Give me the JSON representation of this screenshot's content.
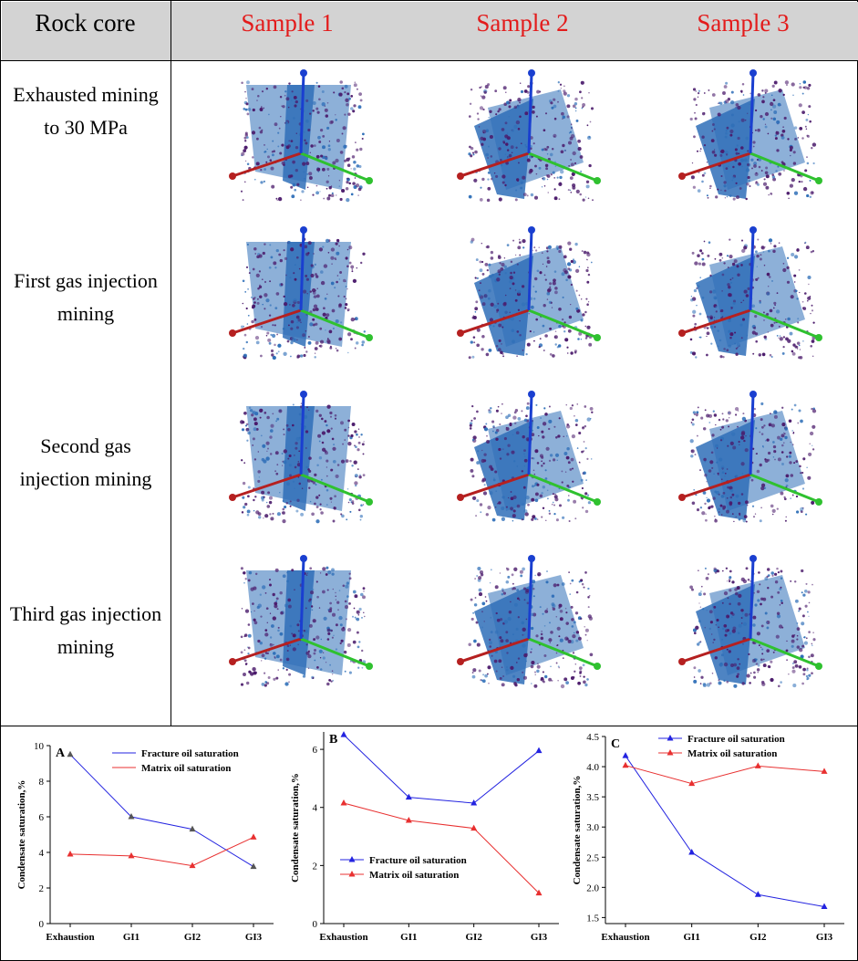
{
  "table": {
    "header": {
      "rock_core_label": "Rock core",
      "samples": [
        "Sample 1",
        "Sample 2",
        "Sample 3"
      ],
      "sample_color": "#e31b1b"
    },
    "rows": [
      {
        "label": "Exhausted mining to 30 MPa"
      },
      {
        "label": "First gas injection mining"
      },
      {
        "label": "Second gas injection mining"
      },
      {
        "label": "Third gas injection mining"
      }
    ],
    "colors": {
      "fracture": "#2f6fb8",
      "pores": "#4a1a6b",
      "axis_x": "#b52020",
      "axis_y": "#2fc12f",
      "axis_z": "#1a3fd0"
    }
  },
  "chart_data": [
    {
      "panel": "A",
      "type": "line",
      "categories": [
        "Exhaustion",
        "GI1",
        "GI2",
        "GI3"
      ],
      "ylabel": "Condensate saturation,%",
      "ylim": [
        0,
        10
      ],
      "yticks": [
        "0",
        "2",
        "4",
        "6",
        "8",
        "10"
      ],
      "legend_position": "top-right",
      "series": [
        {
          "name": "Fracture oil saturation",
          "color": "#2323e0",
          "values": [
            9.5,
            6.0,
            5.3,
            3.2
          ]
        },
        {
          "name": "Matrix oil saturation",
          "color": "#e83030",
          "values": [
            3.9,
            3.8,
            3.25,
            4.85
          ]
        }
      ]
    },
    {
      "panel": "B",
      "type": "line",
      "categories": [
        "Exhaustion",
        "GI1",
        "GI2",
        "GI3"
      ],
      "ylabel": "Condensate saturation,%",
      "ylim": [
        0,
        6.6
      ],
      "yticks": [
        "0",
        "2",
        "4",
        "6"
      ],
      "legend_position": "bottom-left",
      "series": [
        {
          "name": "Fracture oil saturation",
          "color": "#2323e0",
          "values": [
            6.5,
            4.35,
            4.15,
            5.95
          ]
        },
        {
          "name": "Matrix oil saturation",
          "color": "#e83030",
          "values": [
            4.15,
            3.55,
            3.28,
            1.05
          ]
        }
      ]
    },
    {
      "panel": "C",
      "type": "line",
      "categories": [
        "Exhaustion",
        "GI1",
        "GI2",
        "GI3"
      ],
      "ylabel": "Condensate saturation,%",
      "ylim": [
        1.4,
        4.5
      ],
      "yticks": [
        "1.5",
        "2.0",
        "2.5",
        "3.0",
        "3.5",
        "4.0",
        "4.5"
      ],
      "legend_position": "top-right",
      "series": [
        {
          "name": "Fracture oil saturation",
          "color": "#2323e0",
          "values": [
            4.18,
            2.58,
            1.88,
            1.68
          ]
        },
        {
          "name": "Matrix oil saturation",
          "color": "#e83030",
          "values": [
            4.02,
            3.72,
            4.01,
            3.92
          ]
        }
      ]
    }
  ]
}
